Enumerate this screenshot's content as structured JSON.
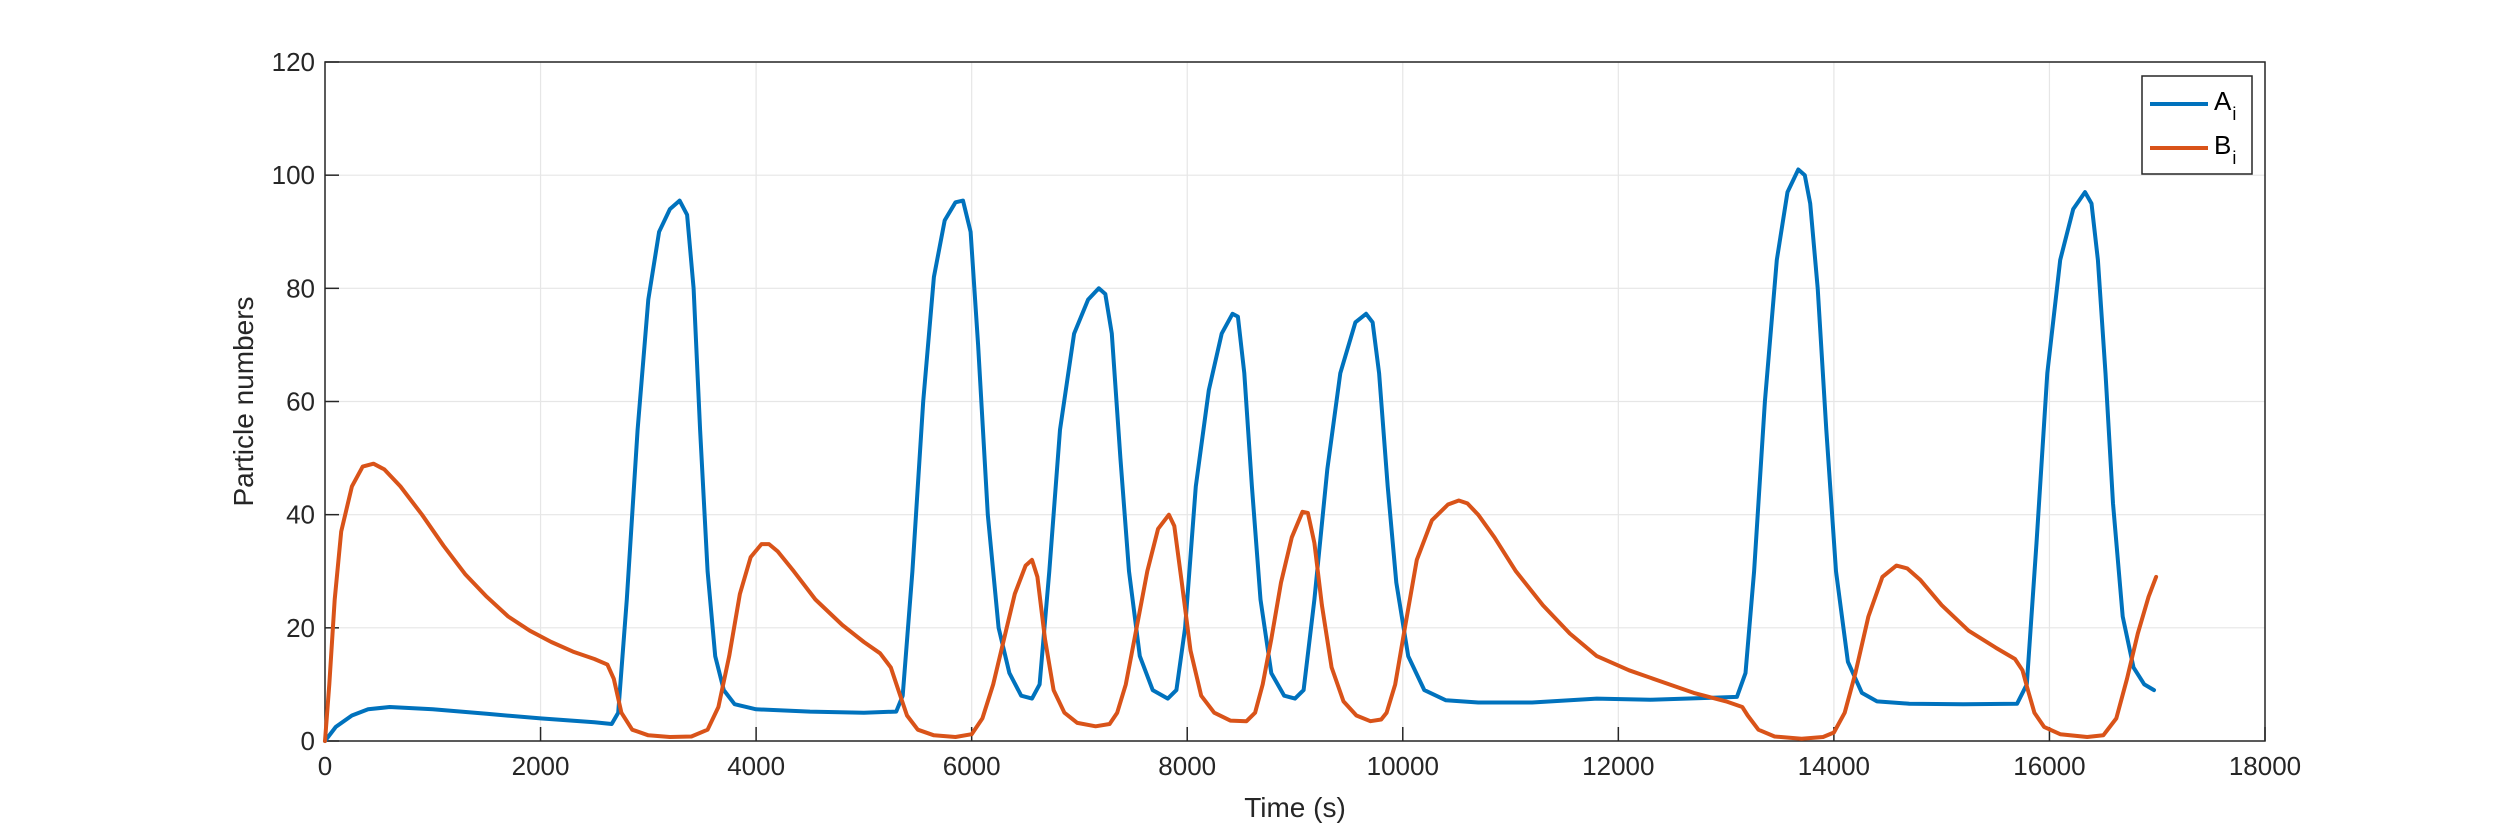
{
  "chart_data": {
    "type": "line",
    "title": "",
    "xlabel": "Time (s)",
    "ylabel": "Particle numbers",
    "xlim": [
      0,
      18000
    ],
    "ylim": [
      0,
      120
    ],
    "xticks": [
      0,
      2000,
      4000,
      6000,
      8000,
      10000,
      12000,
      14000,
      16000,
      18000
    ],
    "yticks": [
      0,
      20,
      40,
      60,
      80,
      100,
      120
    ],
    "grid": true,
    "legend_position": "top-right",
    "series": [
      {
        "name": "A",
        "name_subscript": "i",
        "color": "#0072BD",
        "points": [
          [
            0,
            0
          ],
          [
            100,
            2.5
          ],
          [
            250,
            4.5
          ],
          [
            400,
            5.6
          ],
          [
            600,
            6
          ],
          [
            1000,
            5.6
          ],
          [
            1500,
            4.8
          ],
          [
            2000,
            4
          ],
          [
            2500,
            3.3
          ],
          [
            2660,
            3
          ],
          [
            2720,
            5
          ],
          [
            2800,
            25
          ],
          [
            2900,
            55
          ],
          [
            3000,
            78
          ],
          [
            3100,
            90
          ],
          [
            3200,
            94
          ],
          [
            3290,
            95.5
          ],
          [
            3360,
            93
          ],
          [
            3420,
            80
          ],
          [
            3480,
            55
          ],
          [
            3550,
            30
          ],
          [
            3620,
            15
          ],
          [
            3700,
            9
          ],
          [
            3800,
            6.5
          ],
          [
            4000,
            5.6
          ],
          [
            4500,
            5.2
          ],
          [
            5000,
            5
          ],
          [
            5300,
            5.2
          ],
          [
            5360,
            8
          ],
          [
            5450,
            30
          ],
          [
            5550,
            60
          ],
          [
            5650,
            82
          ],
          [
            5750,
            92
          ],
          [
            5850,
            95.2
          ],
          [
            5920,
            95.5
          ],
          [
            5990,
            90
          ],
          [
            6060,
            70
          ],
          [
            6150,
            40
          ],
          [
            6250,
            20
          ],
          [
            6350,
            12
          ],
          [
            6460,
            8
          ],
          [
            6560,
            7.5
          ],
          [
            6630,
            10
          ],
          [
            6720,
            30
          ],
          [
            6820,
            55
          ],
          [
            6950,
            72
          ],
          [
            7080,
            78
          ],
          [
            7180,
            80
          ],
          [
            7240,
            79
          ],
          [
            7300,
            72
          ],
          [
            7380,
            50
          ],
          [
            7460,
            30
          ],
          [
            7560,
            15
          ],
          [
            7680,
            9
          ],
          [
            7820,
            7.5
          ],
          [
            7900,
            9
          ],
          [
            7980,
            20
          ],
          [
            8080,
            45
          ],
          [
            8200,
            62
          ],
          [
            8320,
            72
          ],
          [
            8420,
            75.5
          ],
          [
            8470,
            75
          ],
          [
            8530,
            65
          ],
          [
            8600,
            45
          ],
          [
            8680,
            25
          ],
          [
            8780,
            12
          ],
          [
            8900,
            8
          ],
          [
            9000,
            7.5
          ],
          [
            9080,
            9
          ],
          [
            9180,
            25
          ],
          [
            9300,
            48
          ],
          [
            9420,
            65
          ],
          [
            9560,
            74
          ],
          [
            9660,
            75.5
          ],
          [
            9720,
            74
          ],
          [
            9780,
            65
          ],
          [
            9860,
            45
          ],
          [
            9940,
            28
          ],
          [
            10050,
            15
          ],
          [
            10200,
            9
          ],
          [
            10400,
            7.2
          ],
          [
            10700,
            6.8
          ],
          [
            11200,
            6.8
          ],
          [
            11800,
            7.5
          ],
          [
            12300,
            7.3
          ],
          [
            12800,
            7.6
          ],
          [
            13100,
            7.8
          ],
          [
            13180,
            12
          ],
          [
            13260,
            30
          ],
          [
            13360,
            60
          ],
          [
            13470,
            85
          ],
          [
            13570,
            97
          ],
          [
            13670,
            101
          ],
          [
            13730,
            100
          ],
          [
            13780,
            95
          ],
          [
            13850,
            80
          ],
          [
            13930,
            55
          ],
          [
            14020,
            30
          ],
          [
            14130,
            14
          ],
          [
            14260,
            8.5
          ],
          [
            14400,
            7
          ],
          [
            14700,
            6.6
          ],
          [
            15200,
            6.5
          ],
          [
            15700,
            6.6
          ],
          [
            15790,
            10
          ],
          [
            15880,
            35
          ],
          [
            15980,
            65
          ],
          [
            16100,
            85
          ],
          [
            16220,
            94
          ],
          [
            16330,
            97
          ],
          [
            16390,
            95
          ],
          [
            16450,
            85
          ],
          [
            16520,
            65
          ],
          [
            16590,
            42
          ],
          [
            16680,
            22
          ],
          [
            16780,
            13
          ],
          [
            16880,
            10
          ],
          [
            16970,
            9
          ]
        ]
      },
      {
        "name": "B",
        "name_subscript": "i",
        "color": "#D95319",
        "points": [
          [
            0,
            0
          ],
          [
            40,
            10
          ],
          [
            90,
            25
          ],
          [
            150,
            37
          ],
          [
            250,
            45
          ],
          [
            350,
            48.5
          ],
          [
            450,
            49
          ],
          [
            550,
            48
          ],
          [
            700,
            45
          ],
          [
            900,
            40
          ],
          [
            1100,
            34.5
          ],
          [
            1300,
            29.5
          ],
          [
            1500,
            25.5
          ],
          [
            1700,
            22
          ],
          [
            1900,
            19.5
          ],
          [
            2100,
            17.5
          ],
          [
            2300,
            15.8
          ],
          [
            2500,
            14.5
          ],
          [
            2620,
            13.5
          ],
          [
            2680,
            11
          ],
          [
            2750,
            5
          ],
          [
            2850,
            2
          ],
          [
            3000,
            1
          ],
          [
            3200,
            0.7
          ],
          [
            3400,
            0.8
          ],
          [
            3550,
            2
          ],
          [
            3650,
            6
          ],
          [
            3750,
            15
          ],
          [
            3850,
            26
          ],
          [
            3950,
            32.5
          ],
          [
            4050,
            34.8
          ],
          [
            4120,
            34.8
          ],
          [
            4200,
            33.5
          ],
          [
            4350,
            30
          ],
          [
            4550,
            25
          ],
          [
            4800,
            20.5
          ],
          [
            5000,
            17.5
          ],
          [
            5150,
            15.5
          ],
          [
            5250,
            13
          ],
          [
            5320,
            9
          ],
          [
            5400,
            4.5
          ],
          [
            5500,
            2
          ],
          [
            5650,
            1
          ],
          [
            5850,
            0.7
          ],
          [
            6000,
            1.2
          ],
          [
            6100,
            4
          ],
          [
            6200,
            10
          ],
          [
            6300,
            18
          ],
          [
            6400,
            26
          ],
          [
            6500,
            31
          ],
          [
            6560,
            32
          ],
          [
            6610,
            29
          ],
          [
            6680,
            18
          ],
          [
            6760,
            9
          ],
          [
            6860,
            5
          ],
          [
            6980,
            3.2
          ],
          [
            7150,
            2.6
          ],
          [
            7280,
            3
          ],
          [
            7350,
            5
          ],
          [
            7430,
            10
          ],
          [
            7530,
            20
          ],
          [
            7630,
            30
          ],
          [
            7730,
            37.5
          ],
          [
            7830,
            40
          ],
          [
            7880,
            38
          ],
          [
            7950,
            28
          ],
          [
            8030,
            16
          ],
          [
            8130,
            8
          ],
          [
            8250,
            5
          ],
          [
            8400,
            3.6
          ],
          [
            8550,
            3.5
          ],
          [
            8630,
            5
          ],
          [
            8700,
            10
          ],
          [
            8780,
            18
          ],
          [
            8870,
            28
          ],
          [
            8970,
            36
          ],
          [
            9070,
            40.5
          ],
          [
            9120,
            40.3
          ],
          [
            9180,
            35
          ],
          [
            9250,
            24
          ],
          [
            9340,
            13
          ],
          [
            9450,
            7
          ],
          [
            9570,
            4.5
          ],
          [
            9700,
            3.5
          ],
          [
            9800,
            3.8
          ],
          [
            9850,
            5
          ],
          [
            9930,
            10
          ],
          [
            10020,
            20
          ],
          [
            10130,
            32
          ],
          [
            10270,
            39
          ],
          [
            10420,
            41.8
          ],
          [
            10520,
            42.5
          ],
          [
            10600,
            42
          ],
          [
            10700,
            40
          ],
          [
            10850,
            36
          ],
          [
            11050,
            30
          ],
          [
            11300,
            24
          ],
          [
            11550,
            19
          ],
          [
            11800,
            15
          ],
          [
            12100,
            12.5
          ],
          [
            12400,
            10.5
          ],
          [
            12700,
            8.5
          ],
          [
            13000,
            7
          ],
          [
            13150,
            6
          ],
          [
            13200,
            4.5
          ],
          [
            13300,
            2
          ],
          [
            13450,
            0.8
          ],
          [
            13700,
            0.4
          ],
          [
            13900,
            0.7
          ],
          [
            14000,
            1.5
          ],
          [
            14100,
            5
          ],
          [
            14200,
            12
          ],
          [
            14320,
            22
          ],
          [
            14450,
            29
          ],
          [
            14580,
            31
          ],
          [
            14680,
            30.5
          ],
          [
            14800,
            28.5
          ],
          [
            15000,
            24
          ],
          [
            15250,
            19.5
          ],
          [
            15500,
            16.5
          ],
          [
            15680,
            14.5
          ],
          [
            15750,
            12.5
          ],
          [
            15800,
            9
          ],
          [
            15860,
            5
          ],
          [
            15950,
            2.5
          ],
          [
            16100,
            1.2
          ],
          [
            16350,
            0.7
          ],
          [
            16500,
            1
          ],
          [
            16620,
            4
          ],
          [
            16720,
            11
          ],
          [
            16820,
            19
          ],
          [
            16920,
            25.5
          ],
          [
            16990,
            29
          ]
        ]
      }
    ]
  }
}
